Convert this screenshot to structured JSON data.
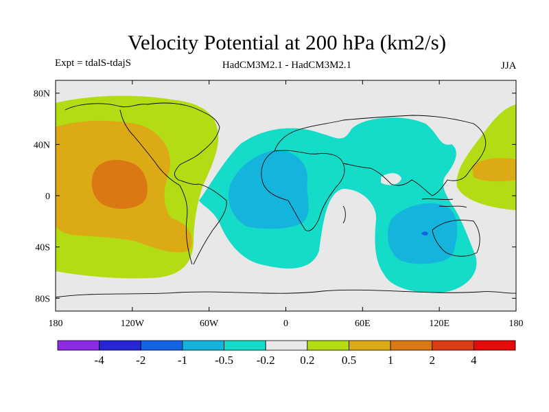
{
  "chart_data": {
    "type": "contour-map",
    "title": "Velocity Potential at 200 hPa (km2/s)",
    "experiment": "Expt = tdalS-tdajS",
    "models": "HadCM3M2.1 - HadCM3M2.1",
    "season": "JJA",
    "lon_range": [
      -180,
      180
    ],
    "lat_range": [
      -90,
      90
    ],
    "x_ticks": [
      {
        "value": -180,
        "label": "180"
      },
      {
        "value": -120,
        "label": "120W"
      },
      {
        "value": -60,
        "label": "60W"
      },
      {
        "value": 0,
        "label": "0"
      },
      {
        "value": 60,
        "label": "60E"
      },
      {
        "value": 120,
        "label": "120E"
      },
      {
        "value": 180,
        "label": "180"
      }
    ],
    "y_ticks": [
      {
        "value": 80,
        "label": "80N"
      },
      {
        "value": 40,
        "label": "40N"
      },
      {
        "value": 0,
        "label": "0"
      },
      {
        "value": -40,
        "label": "40S"
      },
      {
        "value": -80,
        "label": "80S"
      }
    ],
    "levels": [
      "-4",
      "-2",
      "-1",
      "-0.5",
      "-0.2",
      "0.2",
      "0.5",
      "1",
      "2",
      "4"
    ],
    "colors": [
      "#8a2be2",
      "#2626d4",
      "#1464e6",
      "#14b4dc",
      "#14dcc8",
      "#e8e8e8",
      "#b4dc14",
      "#dcaa14",
      "#dc7814",
      "#dc3c14",
      "#e60a0a"
    ]
  }
}
